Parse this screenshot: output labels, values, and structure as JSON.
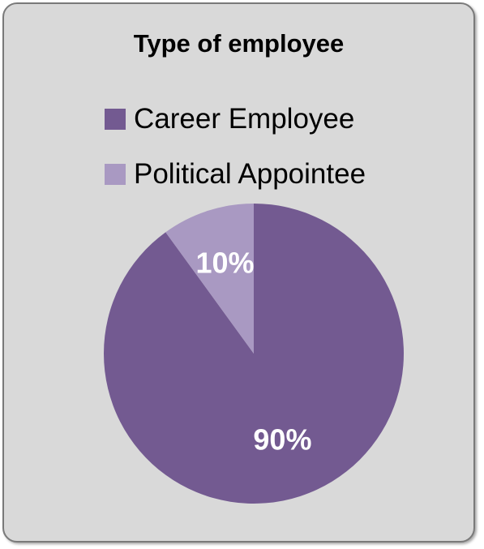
{
  "chart_data": {
    "type": "pie",
    "title": "Type of employee",
    "legend_position": "top",
    "slices": [
      {
        "label": "Career Employee",
        "value": 90,
        "data_label": "90%",
        "color": "#735a91"
      },
      {
        "label": "Political Appointee",
        "value": 10,
        "data_label": "10%",
        "color": "#a999c2"
      }
    ]
  }
}
